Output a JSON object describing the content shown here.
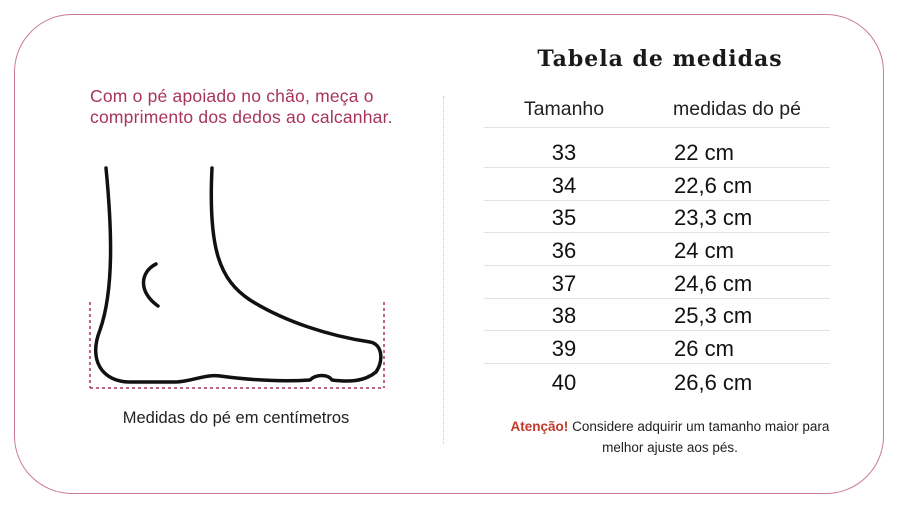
{
  "left": {
    "instruction": "Com o pé apoiado no chão, meça o comprimento dos dedos ao calcanhar.",
    "caption": "Medidas do pé em centímetros"
  },
  "right": {
    "title": "Tabela de medidas",
    "headers": {
      "size": "Tamanho",
      "measure": "medidas do pé"
    },
    "rows": [
      {
        "size": "33",
        "measure": "22 cm"
      },
      {
        "size": "34",
        "measure": "22,6 cm"
      },
      {
        "size": "35",
        "measure": "23,3 cm"
      },
      {
        "size": "36",
        "measure": "24 cm"
      },
      {
        "size": "37",
        "measure": "24,6 cm"
      },
      {
        "size": "38",
        "measure": "25,3 cm"
      },
      {
        "size": "39",
        "measure": "26 cm"
      },
      {
        "size": "40",
        "measure": "26,6 cm"
      }
    ],
    "note": {
      "warning": "Atenção!",
      "text": " Considere adquirir um tamanho maior para melhor ajuste aos pés."
    }
  },
  "colors": {
    "border": "#c97b8f",
    "accent": "#a8345e",
    "warning": "#c0392b"
  },
  "icons": {
    "illustration": "foot-outline-icon"
  }
}
